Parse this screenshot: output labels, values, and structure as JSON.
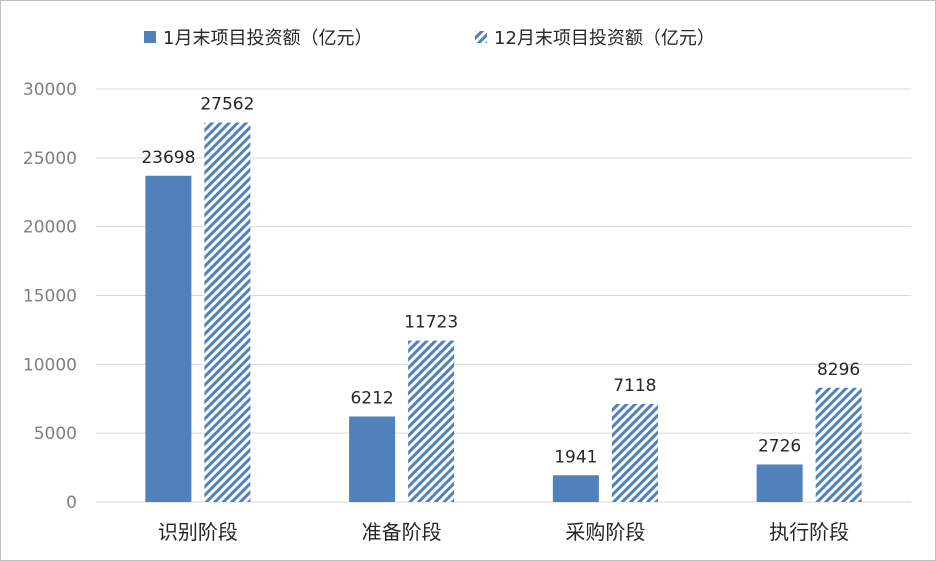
{
  "chart_data": {
    "type": "bar",
    "categories": [
      "识别阶段",
      "准备阶段",
      "采购阶段",
      "执行阶段"
    ],
    "series": [
      {
        "name": "1月末项目投资额（亿元）",
        "values": [
          23698,
          6212,
          1941,
          2726
        ],
        "color": "#4f81bd",
        "pattern": "solid"
      },
      {
        "name": "12月末项目投资额（亿元）",
        "values": [
          27562,
          11723,
          7118,
          8296
        ],
        "color": "#4f81bd",
        "pattern": "diagonal-stripes"
      }
    ],
    "ylim": [
      0,
      30000
    ],
    "yticks": [
      0,
      5000,
      10000,
      15000,
      20000,
      25000,
      30000
    ],
    "grid": true,
    "legend_position": "top-center",
    "data_labels": true
  }
}
